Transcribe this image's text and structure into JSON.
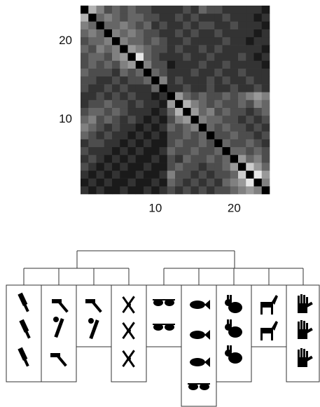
{
  "chart_data": {
    "type": "heatmap",
    "colormap": "gray",
    "zlim": [
      0,
      1
    ],
    "xlim": [
      0.5,
      24.5
    ],
    "ylim": [
      0.5,
      24.5
    ],
    "xticks": [
      10,
      20
    ],
    "yticks": [
      10,
      20
    ],
    "z": [
      [
        0.2,
        0.1,
        0.2,
        0.1,
        0.1,
        0.2,
        0.1,
        0.1,
        0.2,
        0.1,
        0.2,
        0.3,
        0.2,
        0.3,
        0.2,
        0.3,
        0.2,
        0.3,
        0.3,
        0.4,
        0.5,
        0.6,
        0.5,
        0
      ],
      [
        0.1,
        0.2,
        0.1,
        0.2,
        0.1,
        0.1,
        0.2,
        0.1,
        0.1,
        0.2,
        0.1,
        0.4,
        0.3,
        0.2,
        0.3,
        0.2,
        0.3,
        0.2,
        0.4,
        0.5,
        0.6,
        0.9,
        0,
        0.5
      ],
      [
        0.2,
        0.1,
        0.2,
        0.1,
        0.2,
        0.1,
        0.1,
        0.2,
        0.1,
        0.1,
        0.2,
        0.5,
        0.3,
        0.3,
        0.2,
        0.3,
        0.2,
        0.3,
        0.3,
        0.4,
        0.8,
        0,
        0.9,
        0.6
      ],
      [
        0.3,
        0.2,
        0.1,
        0.2,
        0.1,
        0.2,
        0.1,
        0.1,
        0.2,
        0.1,
        0.1,
        0.3,
        0.4,
        0.3,
        0.3,
        0.2,
        0.3,
        0.3,
        0.4,
        0.6,
        0,
        0.8,
        0.6,
        0.4
      ],
      [
        0.2,
        0.3,
        0.2,
        0.1,
        0.2,
        0.1,
        0.2,
        0.1,
        0.1,
        0.2,
        0.1,
        0.3,
        0.2,
        0.4,
        0.3,
        0.3,
        0.4,
        0.3,
        0.4,
        0,
        0.6,
        0.4,
        0.5,
        0.3
      ],
      [
        0.3,
        0.2,
        0.2,
        0.2,
        0.1,
        0.2,
        0.1,
        0.2,
        0.1,
        0.1,
        0.2,
        0.4,
        0.3,
        0.3,
        0.4,
        0.3,
        0.3,
        0.4,
        0,
        0.4,
        0.4,
        0.3,
        0.4,
        0.3
      ],
      [
        0.2,
        0.3,
        0.3,
        0.2,
        0.2,
        0.1,
        0.2,
        0.1,
        0.2,
        0.1,
        0.1,
        0.3,
        0.4,
        0.3,
        0.3,
        0.4,
        0.3,
        0,
        0.4,
        0.3,
        0.3,
        0.4,
        0.3,
        0.2
      ],
      [
        0.4,
        0.3,
        0.2,
        0.3,
        0.2,
        0.2,
        0.1,
        0.2,
        0.1,
        0.2,
        0.1,
        0.3,
        0.3,
        0.4,
        0.3,
        0.4,
        0,
        0.3,
        0.3,
        0.4,
        0.3,
        0.3,
        0.2,
        0.3
      ],
      [
        0.5,
        0.4,
        0.3,
        0.2,
        0.3,
        0.2,
        0.2,
        0.1,
        0.2,
        0.1,
        0.2,
        0.4,
        0.3,
        0.4,
        0.5,
        0,
        0.4,
        0.3,
        0.4,
        0.3,
        0.3,
        0.2,
        0.3,
        0.2
      ],
      [
        0.4,
        0.5,
        0.3,
        0.4,
        0.3,
        0.2,
        0.3,
        0.2,
        0.1,
        0.2,
        0.1,
        0.3,
        0.5,
        0.6,
        0,
        0.5,
        0.4,
        0.4,
        0.3,
        0.3,
        0.2,
        0.3,
        0.2,
        0.3
      ],
      [
        0.3,
        0.4,
        0.4,
        0.3,
        0.4,
        0.3,
        0.2,
        0.2,
        0.2,
        0.1,
        0.2,
        0.4,
        0.7,
        0,
        0.6,
        0.4,
        0.5,
        0.3,
        0.4,
        0.3,
        0.3,
        0.2,
        0.3,
        0.4
      ],
      [
        0.2,
        0.3,
        0.3,
        0.4,
        0.3,
        0.3,
        0.2,
        0.3,
        0.2,
        0.2,
        0.1,
        0.6,
        0,
        0.7,
        0.5,
        0.4,
        0.3,
        0.4,
        0.3,
        0.3,
        0.4,
        0.3,
        0.5,
        0.4
      ],
      [
        0.2,
        0.2,
        0.3,
        0.2,
        0.3,
        0.2,
        0.3,
        0.2,
        0.2,
        0.1,
        0.2,
        0,
        0.6,
        0.4,
        0.3,
        0.4,
        0.3,
        0.3,
        0.4,
        0.3,
        0.4,
        0.5,
        0.6,
        0.5
      ],
      [
        0.3,
        0.2,
        0.2,
        0.3,
        0.2,
        0.3,
        0.2,
        0.2,
        0.2,
        0.4,
        0,
        0.2,
        0.2,
        0.3,
        0.2,
        0.2,
        0.3,
        0.2,
        0.2,
        0.3,
        0.2,
        0.2,
        0.3,
        0.2
      ],
      [
        0.3,
        0.3,
        0.2,
        0.2,
        0.3,
        0.2,
        0.3,
        0.3,
        0.4,
        0,
        0.5,
        0.2,
        0.3,
        0.2,
        0.2,
        0.2,
        0.3,
        0.2,
        0.3,
        0.2,
        0.2,
        0.3,
        0.2,
        0.2
      ],
      [
        0.4,
        0.3,
        0.3,
        0.3,
        0.2,
        0.4,
        0.3,
        0.4,
        0,
        0.4,
        0.3,
        0.2,
        0.2,
        0.2,
        0.3,
        0.2,
        0.2,
        0.3,
        0.2,
        0.2,
        0.3,
        0.2,
        0.2,
        0.2
      ],
      [
        0.3,
        0.4,
        0.3,
        0.4,
        0.3,
        0.5,
        0.6,
        0,
        0.5,
        0.3,
        0.3,
        0.1,
        0.2,
        0.2,
        0.2,
        0.3,
        0.2,
        0.2,
        0.3,
        0.2,
        0.2,
        0.2,
        0.2,
        0.1
      ],
      [
        0.3,
        0.4,
        0.4,
        0.3,
        0.5,
        0.6,
        0,
        0.9,
        0.4,
        0.3,
        0.2,
        0.2,
        0.2,
        0.3,
        0.2,
        0.2,
        0.3,
        0.2,
        0.2,
        0.2,
        0.3,
        0.2,
        0.1,
        0.2
      ],
      [
        0.4,
        0.3,
        0.5,
        0.4,
        0.5,
        0,
        0.6,
        0.5,
        0.4,
        0.3,
        0.3,
        0.2,
        0.3,
        0.2,
        0.2,
        0.3,
        0.2,
        0.3,
        0.2,
        0.2,
        0.2,
        0.2,
        0.2,
        0.1
      ],
      [
        0.3,
        0.4,
        0.4,
        0.5,
        0,
        0.5,
        0.4,
        0.4,
        0.3,
        0.4,
        0.3,
        0.2,
        0.2,
        0.3,
        0.2,
        0.2,
        0.2,
        0.2,
        0.3,
        0.2,
        0.2,
        0.1,
        0.2,
        0.2
      ],
      [
        0.4,
        0.5,
        0.4,
        0,
        0.5,
        0.4,
        0.5,
        0.4,
        0.3,
        0.3,
        0.2,
        0.2,
        0.3,
        0.2,
        0.3,
        0.2,
        0.2,
        0.3,
        0.2,
        0.2,
        0.2,
        0.2,
        0.1,
        0.2
      ],
      [
        0.5,
        0.4,
        0,
        0.4,
        0.4,
        0.5,
        0.4,
        0.3,
        0.4,
        0.2,
        0.3,
        0.2,
        0.2,
        0.3,
        0.2,
        0.3,
        0.3,
        0.2,
        0.2,
        0.3,
        0.2,
        0.2,
        0.2,
        0.1
      ],
      [
        0.7,
        0,
        0.4,
        0.5,
        0.4,
        0.3,
        0.4,
        0.4,
        0.3,
        0.3,
        0.2,
        0.2,
        0.3,
        0.2,
        0.3,
        0.2,
        0.2,
        0.2,
        0.3,
        0.2,
        0.2,
        0.2,
        0.1,
        0.2
      ],
      [
        0,
        0.7,
        0.5,
        0.3,
        0.4,
        0.3,
        0.4,
        0.3,
        0.3,
        0.2,
        0.2,
        0.2,
        0.2,
        0.3,
        0.2,
        0.4,
        0.3,
        0.3,
        0.2,
        0.2,
        0.2,
        0.2,
        0.2,
        0.1
      ]
    ]
  }
}
